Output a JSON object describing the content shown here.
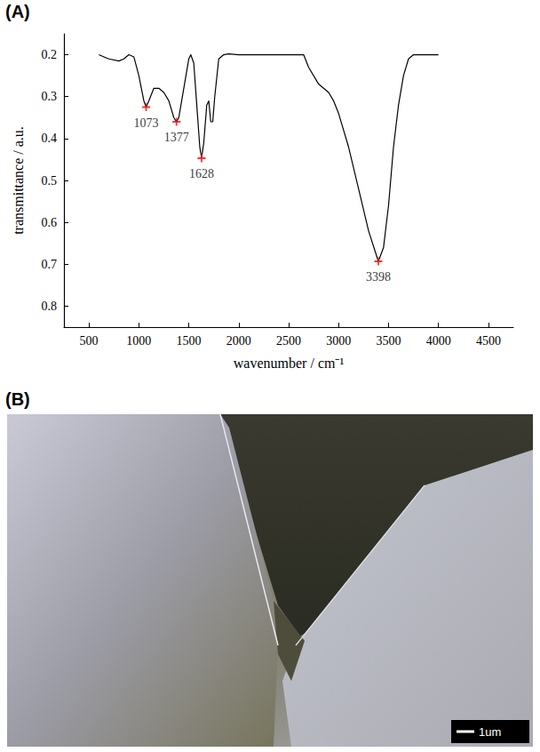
{
  "chart_data": {
    "type": "line",
    "panel_label": "(A)",
    "x_label": "wavenumber / cm⁻¹",
    "y_label": "transmittance / a.u.",
    "x": [
      600,
      650,
      700,
      800,
      850,
      900,
      950,
      1000,
      1050,
      1073,
      1100,
      1150,
      1200,
      1250,
      1300,
      1350,
      1377,
      1400,
      1450,
      1500,
      1520,
      1550,
      1580,
      1610,
      1628,
      1650,
      1680,
      1700,
      1720,
      1740,
      1760,
      1800,
      1850,
      1900,
      2000,
      2500,
      2650,
      2700,
      2800,
      2900,
      2950,
      3000,
      3100,
      3200,
      3300,
      3398,
      3450,
      3500,
      3550,
      3600,
      3650,
      3700,
      3750,
      4000
    ],
    "values": [
      0.2,
      0.205,
      0.21,
      0.215,
      0.21,
      0.2,
      0.205,
      0.25,
      0.31,
      0.325,
      0.31,
      0.28,
      0.28,
      0.29,
      0.31,
      0.35,
      0.36,
      0.35,
      0.28,
      0.21,
      0.2,
      0.22,
      0.32,
      0.42,
      0.447,
      0.41,
      0.32,
      0.31,
      0.36,
      0.36,
      0.3,
      0.21,
      0.2,
      0.198,
      0.2,
      0.2,
      0.2,
      0.23,
      0.27,
      0.29,
      0.31,
      0.34,
      0.42,
      0.52,
      0.62,
      0.693,
      0.66,
      0.56,
      0.42,
      0.32,
      0.25,
      0.21,
      0.2,
      0.2
    ],
    "color": "#000000",
    "xlim": [
      250,
      4750
    ],
    "xticks": [
      500,
      1000,
      1500,
      2000,
      2500,
      3000,
      3500,
      4000,
      4500
    ],
    "ylim": [
      0.85,
      0.15
    ],
    "yticks": [
      0.2,
      0.3,
      0.4,
      0.5,
      0.6,
      0.7,
      0.8
    ],
    "grid": false,
    "annotations": [
      {
        "x": 1073,
        "y": 0.325,
        "label": "1073",
        "color": "#ff0000",
        "marker": "cross"
      },
      {
        "x": 1377,
        "y": 0.36,
        "label": "1377",
        "color": "#ff0000",
        "marker": "cross"
      },
      {
        "x": 1628,
        "y": 0.447,
        "label": "1628",
        "color": "#ff0000",
        "marker": "cross"
      },
      {
        "x": 3398,
        "y": 0.693,
        "label": "3398",
        "color": "#ff0000",
        "marker": "cross"
      }
    ]
  },
  "image_panel": {
    "label": "(B)",
    "scale_bar": "1um"
  }
}
